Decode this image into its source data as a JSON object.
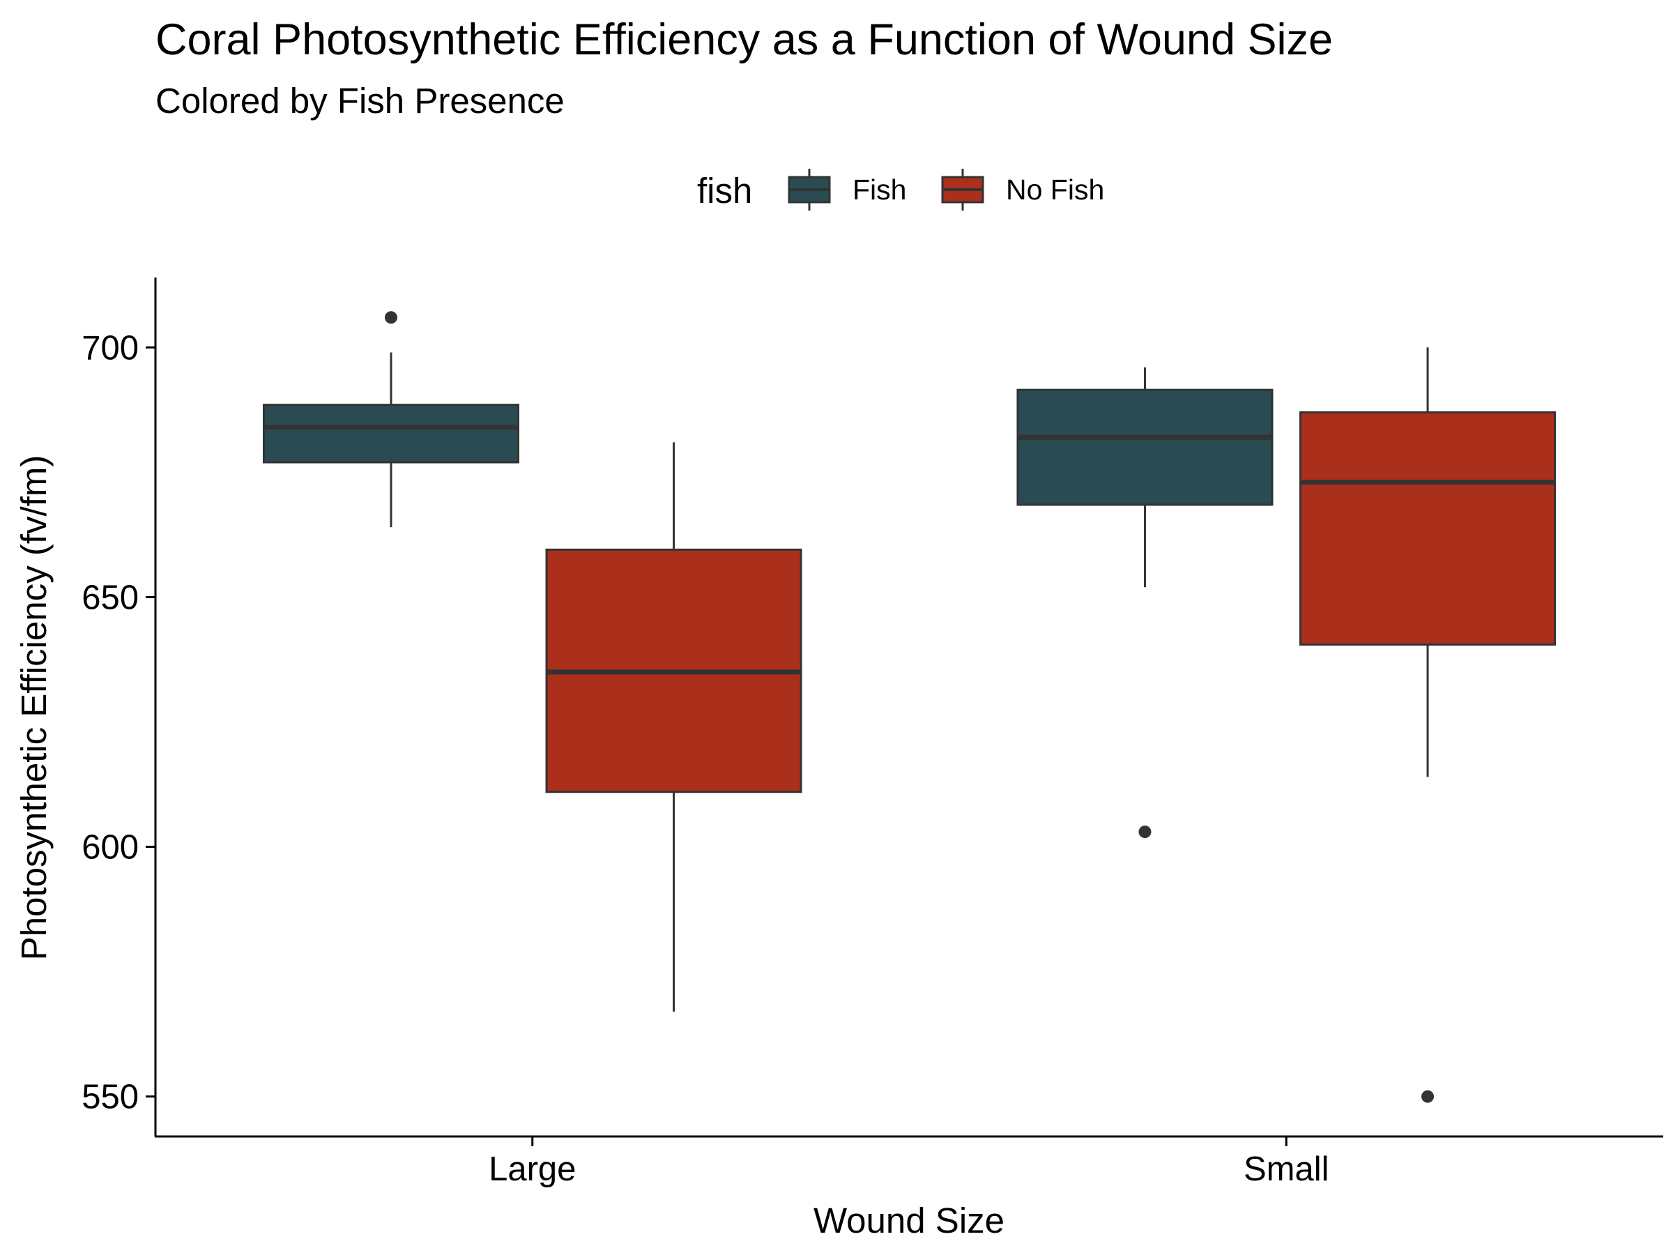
{
  "chart_data": {
    "type": "boxplot",
    "title": "Coral Photosynthetic Efficiency as a Function of Wound Size",
    "subtitle": "Colored by Fish Presence",
    "xlabel": "Wound Size",
    "ylabel": "Photosynthetic Efficiency (fv/fm)",
    "categories": [
      "Large",
      "Small"
    ],
    "ylim": [
      542,
      714
    ],
    "yticks": [
      550,
      600,
      650,
      700
    ],
    "grid": false,
    "legend": {
      "title": "fish",
      "position": "top",
      "entries": [
        "Fish",
        "No Fish"
      ]
    },
    "series": [
      {
        "name": "Fish",
        "color": "#2b4b53",
        "boxes": [
          {
            "category": "Large",
            "whisker_low": 664,
            "q1": 677,
            "median": 684,
            "q3": 688.5,
            "whisker_high": 699,
            "outliers": [
              706
            ]
          },
          {
            "category": "Small",
            "whisker_low": 652,
            "q1": 668.5,
            "median": 682,
            "q3": 691.5,
            "whisker_high": 696,
            "outliers": [
              603
            ]
          }
        ]
      },
      {
        "name": "No Fish",
        "color": "#ab301c",
        "boxes": [
          {
            "category": "Large",
            "whisker_low": 567,
            "q1": 611,
            "median": 635,
            "q3": 659.5,
            "whisker_high": 681,
            "outliers": []
          },
          {
            "category": "Small",
            "whisker_low": 614,
            "q1": 640.5,
            "median": 673,
            "q3": 687,
            "whisker_high": 700,
            "outliers": [
              550
            ]
          }
        ]
      }
    ]
  }
}
